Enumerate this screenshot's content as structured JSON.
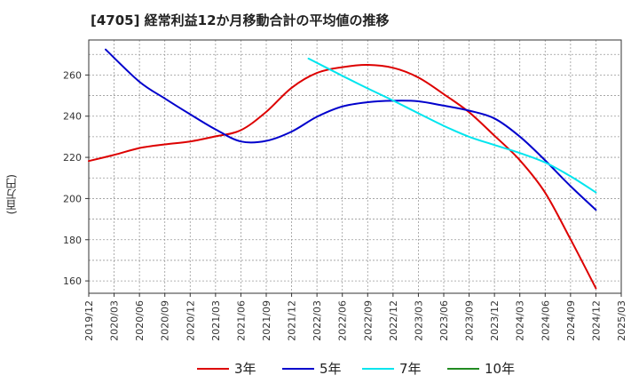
{
  "chart_data": {
    "type": "line",
    "title": "[4705]  経常利益12か月移動合計の平均値の推移",
    "ylabel": "(百万円)",
    "ylim": [
      154,
      277
    ],
    "yticks": [
      160,
      180,
      200,
      220,
      240,
      260
    ],
    "xlim": [
      "2019/12",
      "2025/03"
    ],
    "xticks": [
      "2019/12",
      "2020/03",
      "2020/06",
      "2020/09",
      "2020/12",
      "2021/03",
      "2021/06",
      "2021/09",
      "2021/12",
      "2022/03",
      "2022/06",
      "2022/09",
      "2022/12",
      "2023/03",
      "2023/06",
      "2023/09",
      "2023/12",
      "2024/03",
      "2024/06",
      "2024/09",
      "2024/12",
      "2025/03"
    ],
    "grid": true,
    "legend_position": "bottom",
    "series": [
      {
        "name": "3年",
        "color": "#dd0000",
        "points": [
          [
            "2019/12",
            218.2
          ],
          [
            "2020/03",
            221.2
          ],
          [
            "2020/06",
            224.5
          ],
          [
            "2020/09",
            226.3
          ],
          [
            "2020/12",
            227.7
          ],
          [
            "2021/03",
            230.2
          ],
          [
            "2021/06",
            233.2
          ],
          [
            "2021/09",
            242.1
          ],
          [
            "2021/12",
            253.8
          ],
          [
            "2022/03",
            261.0
          ],
          [
            "2022/06",
            263.8
          ],
          [
            "2022/09",
            264.9
          ],
          [
            "2022/12",
            263.5
          ],
          [
            "2023/03",
            258.8
          ],
          [
            "2023/06",
            250.7
          ],
          [
            "2023/09",
            241.9
          ],
          [
            "2023/12",
            230.5
          ],
          [
            "2024/03",
            218.6
          ],
          [
            "2024/06",
            202.8
          ],
          [
            "2024/09",
            180.2
          ],
          [
            "2024/12",
            156.4
          ]
        ]
      },
      {
        "name": "5年",
        "color": "#0000cc",
        "points": [
          [
            "2020/02",
            272.4
          ],
          [
            "2020/06",
            256.7
          ],
          [
            "2020/09",
            248.6
          ],
          [
            "2020/12",
            240.9
          ],
          [
            "2021/03",
            233.6
          ],
          [
            "2021/06",
            227.7
          ],
          [
            "2021/09",
            228.0
          ],
          [
            "2021/12",
            232.5
          ],
          [
            "2022/03",
            239.7
          ],
          [
            "2022/06",
            244.7
          ],
          [
            "2022/09",
            246.8
          ],
          [
            "2022/12",
            247.5
          ],
          [
            "2023/03",
            247.2
          ],
          [
            "2023/06",
            245.1
          ],
          [
            "2023/09",
            242.7
          ],
          [
            "2023/12",
            238.9
          ],
          [
            "2024/03",
            230.1
          ],
          [
            "2024/06",
            218.5
          ],
          [
            "2024/09",
            206.0
          ],
          [
            "2024/12",
            194.5
          ]
        ]
      },
      {
        "name": "7年",
        "color": "#00e5ee",
        "points": [
          [
            "2022/02",
            268.0
          ],
          [
            "2022/06",
            259.6
          ],
          [
            "2022/09",
            253.5
          ],
          [
            "2022/12",
            247.6
          ],
          [
            "2023/03",
            241.4
          ],
          [
            "2023/06",
            235.3
          ],
          [
            "2023/09",
            230.0
          ],
          [
            "2023/12",
            226.0
          ],
          [
            "2024/03",
            222.1
          ],
          [
            "2024/06",
            217.5
          ],
          [
            "2024/09",
            210.8
          ],
          [
            "2024/12",
            203.0
          ]
        ]
      },
      {
        "name": "10年",
        "color": "#228b22",
        "points": []
      }
    ]
  }
}
